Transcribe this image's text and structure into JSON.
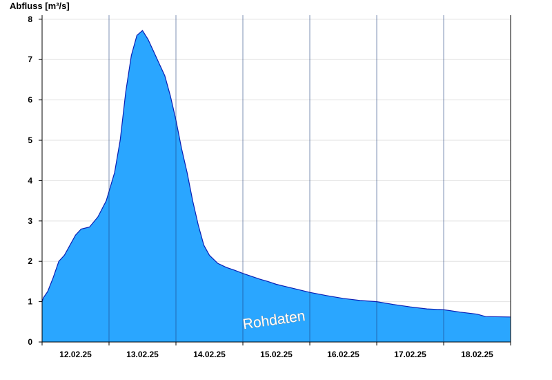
{
  "chart_data": {
    "type": "area",
    "ylabel": "Abfluss [m³/s]",
    "xtick_labels": [
      "12.02.25",
      "13.02.25",
      "14.02.25",
      "15.02.25",
      "16.02.25",
      "17.02.25",
      "18.02.25"
    ],
    "yticks": [
      0,
      1,
      2,
      3,
      4,
      5,
      6,
      7,
      8
    ],
    "ylim": [
      0,
      8.1
    ],
    "xlim_days": [
      "12.02.25 00:00",
      "19.02.25 00:00"
    ],
    "grid": true,
    "watermark": "Rohdaten",
    "fill_color": "#2aa6ff",
    "line_color": "#0a1eb4",
    "series": [
      {
        "points": [
          [
            "11.02.25 23:00",
            1.0
          ],
          [
            "12.02.25 00:30",
            1.1
          ],
          [
            "12.02.25 02:00",
            1.25
          ],
          [
            "12.02.25 04:00",
            1.6
          ],
          [
            "12.02.25 06:00",
            2.0
          ],
          [
            "12.02.25 08:00",
            2.15
          ],
          [
            "12.02.25 10:00",
            2.4
          ],
          [
            "12.02.25 12:00",
            2.65
          ],
          [
            "12.02.25 14:00",
            2.8
          ],
          [
            "12.02.25 17:00",
            2.85
          ],
          [
            "12.02.25 20:00",
            3.1
          ],
          [
            "12.02.25 23:00",
            3.5
          ],
          [
            "13.02.25 02:00",
            4.2
          ],
          [
            "13.02.25 04:00",
            5.0
          ],
          [
            "13.02.25 06:00",
            6.2
          ],
          [
            "13.02.25 08:00",
            7.1
          ],
          [
            "13.02.25 10:00",
            7.6
          ],
          [
            "13.02.25 12:00",
            7.72
          ],
          [
            "13.02.25 14:00",
            7.5
          ],
          [
            "13.02.25 16:00",
            7.2
          ],
          [
            "13.02.25 18:00",
            6.9
          ],
          [
            "13.02.25 20:00",
            6.6
          ],
          [
            "13.02.25 22:00",
            6.1
          ],
          [
            "14.02.25 00:00",
            5.5
          ],
          [
            "14.02.25 02:00",
            4.8
          ],
          [
            "14.02.25 04:00",
            4.2
          ],
          [
            "14.02.25 06:00",
            3.5
          ],
          [
            "14.02.25 08:00",
            2.9
          ],
          [
            "14.02.25 10:00",
            2.4
          ],
          [
            "14.02.25 12:00",
            2.15
          ],
          [
            "14.02.25 15:00",
            1.95
          ],
          [
            "14.02.25 18:00",
            1.85
          ],
          [
            "14.02.25 21:00",
            1.78
          ],
          [
            "15.02.25 00:00",
            1.7
          ],
          [
            "15.02.25 03:00",
            1.63
          ],
          [
            "15.02.25 06:00",
            1.56
          ],
          [
            "15.02.25 09:00",
            1.5
          ],
          [
            "15.02.25 12:00",
            1.43
          ],
          [
            "15.02.25 15:00",
            1.38
          ],
          [
            "15.02.25 18:00",
            1.33
          ],
          [
            "16.02.25 00:00",
            1.23
          ],
          [
            "16.02.25 06:00",
            1.15
          ],
          [
            "16.02.25 12:00",
            1.08
          ],
          [
            "16.02.25 18:00",
            1.03
          ],
          [
            "17.02.25 00:00",
            1.0
          ],
          [
            "17.02.25 06:00",
            0.93
          ],
          [
            "17.02.25 12:00",
            0.87
          ],
          [
            "17.02.25 18:00",
            0.82
          ],
          [
            "18.02.25 00:00",
            0.8
          ],
          [
            "18.02.25 06:00",
            0.74
          ],
          [
            "18.02.25 12:00",
            0.69
          ],
          [
            "18.02.25 15:00",
            0.63
          ],
          [
            "19.02.25 00:00",
            0.62
          ]
        ]
      }
    ]
  }
}
